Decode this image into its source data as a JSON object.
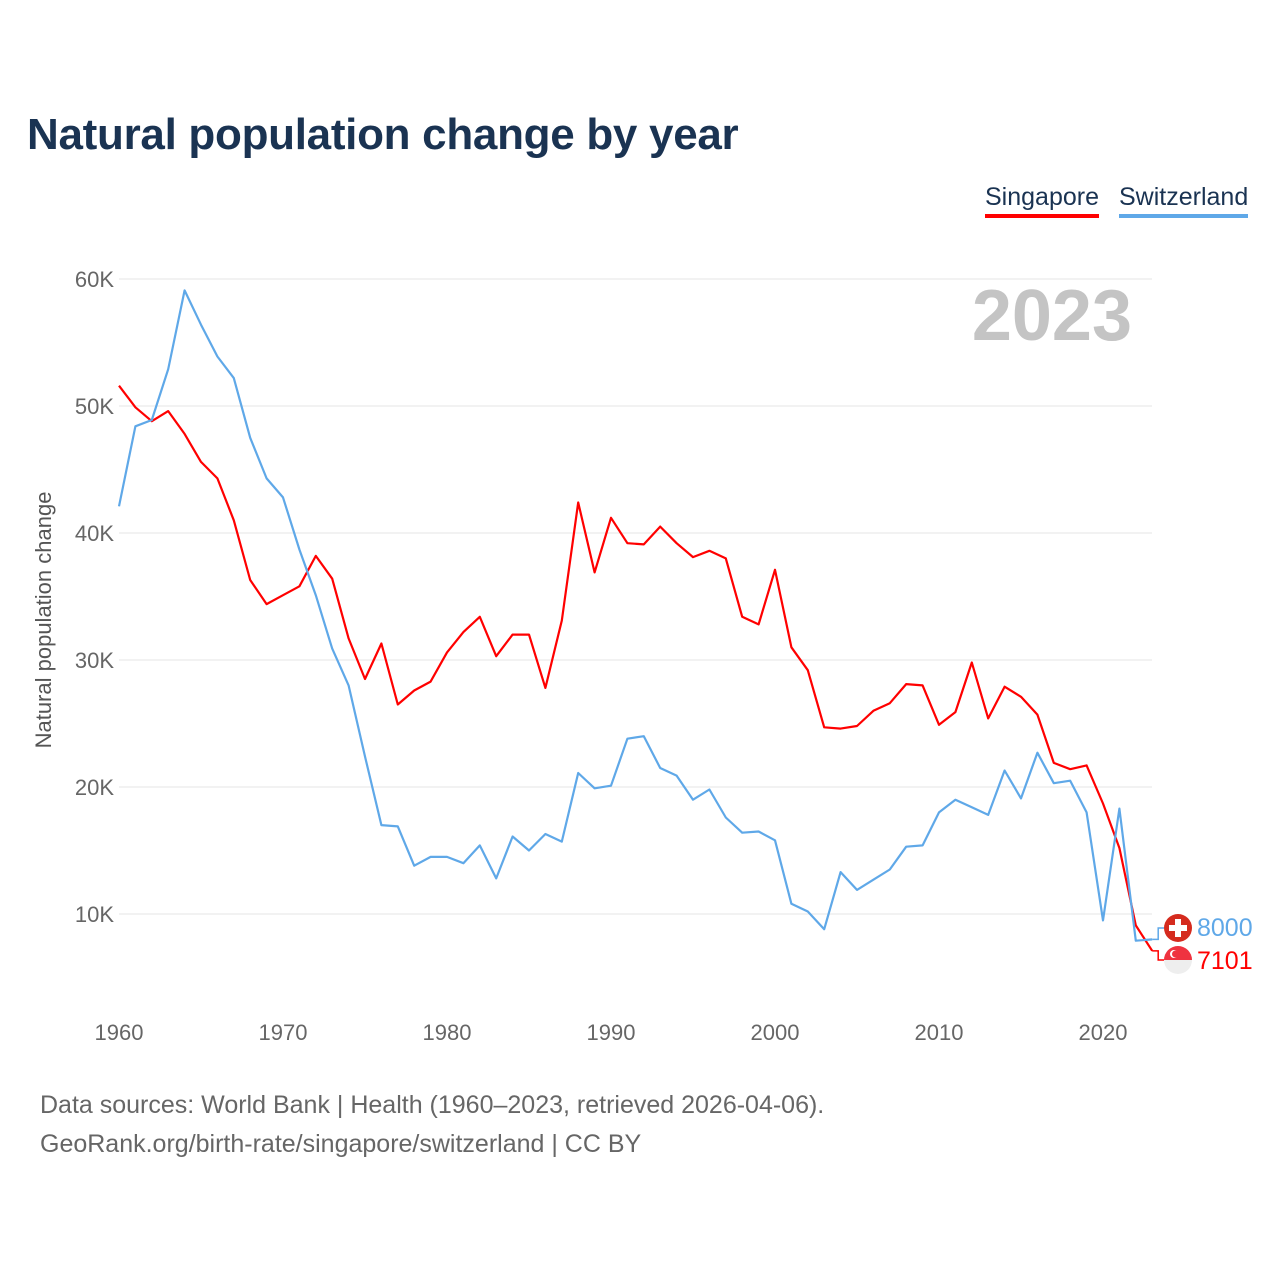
{
  "title": "Natural population change by year",
  "legend": [
    {
      "label": "Singapore",
      "color": "#ff0000"
    },
    {
      "label": "Switzerland",
      "color": "#5fa8e8"
    }
  ],
  "footer": {
    "line1": "Data sources: World Bank | Health (1960–2023, retrieved 2026-04-06).",
    "line2": "GeoRank.org/birth-rate/singapore/switzerland | CC BY"
  },
  "chart_data": {
    "type": "line",
    "title": "Natural population change by year",
    "xlabel": "",
    "ylabel": "Natural population change",
    "year_label": "2023",
    "xlim": [
      1960,
      2023
    ],
    "ylim": [
      3000,
      62000
    ],
    "grid": true,
    "legend_position": "top-right",
    "x_ticks": [
      1960,
      1970,
      1980,
      1990,
      2000,
      2010,
      2020
    ],
    "x_tick_labels": [
      "1960",
      "1970",
      "1980",
      "1990",
      "2000",
      "2010",
      "2020"
    ],
    "y_ticks": [
      10000,
      20000,
      30000,
      40000,
      50000,
      60000
    ],
    "y_tick_labels": [
      "10K",
      "20K",
      "30K",
      "40K",
      "50K",
      "60K"
    ],
    "x": [
      1960,
      1961,
      1962,
      1963,
      1964,
      1965,
      1966,
      1967,
      1968,
      1969,
      1970,
      1971,
      1972,
      1973,
      1974,
      1975,
      1976,
      1977,
      1978,
      1979,
      1980,
      1981,
      1982,
      1983,
      1984,
      1985,
      1986,
      1987,
      1988,
      1989,
      1990,
      1991,
      1992,
      1993,
      1994,
      1995,
      1996,
      1997,
      1998,
      1999,
      2000,
      2001,
      2002,
      2003,
      2004,
      2005,
      2006,
      2007,
      2008,
      2009,
      2010,
      2011,
      2012,
      2013,
      2014,
      2015,
      2016,
      2017,
      2018,
      2019,
      2020,
      2021,
      2022,
      2023
    ],
    "series": [
      {
        "name": "Singapore",
        "color": "#ff0000",
        "end_label": "7101",
        "values": [
          51600,
          49900,
          48800,
          49600,
          47800,
          45600,
          44300,
          41000,
          36300,
          34400,
          35100,
          35800,
          38200,
          36400,
          31700,
          28500,
          31300,
          26500,
          27600,
          28300,
          30600,
          32200,
          33400,
          30300,
          32000,
          32000,
          27800,
          33100,
          42400,
          36900,
          41200,
          39200,
          39100,
          40500,
          39200,
          38100,
          38600,
          38000,
          33400,
          32800,
          37100,
          31000,
          29200,
          24700,
          24600,
          24800,
          26000,
          26600,
          28100,
          28000,
          24900,
          25900,
          29800,
          25400,
          27900,
          27100,
          25700,
          21900,
          21400,
          21700,
          18700,
          15200,
          9100,
          7101
        ]
      },
      {
        "name": "Switzerland",
        "color": "#5fa8e8",
        "end_label": "8000",
        "values": [
          42100,
          48400,
          48900,
          52900,
          59100,
          56400,
          53900,
          52200,
          47500,
          44300,
          42800,
          38700,
          35100,
          30900,
          28000,
          22400,
          17000,
          16900,
          13800,
          14500,
          14500,
          14000,
          15400,
          12800,
          16100,
          15000,
          16300,
          15700,
          21100,
          19900,
          20100,
          23800,
          24000,
          21500,
          20900,
          19000,
          19800,
          17600,
          16400,
          16500,
          15800,
          10800,
          10200,
          8800,
          13300,
          11900,
          12700,
          13500,
          15300,
          15400,
          18000,
          19000,
          18400,
          17800,
          21300,
          19100,
          22700,
          20300,
          20500,
          18000,
          9500,
          18300,
          7900,
          8000
        ]
      }
    ]
  }
}
